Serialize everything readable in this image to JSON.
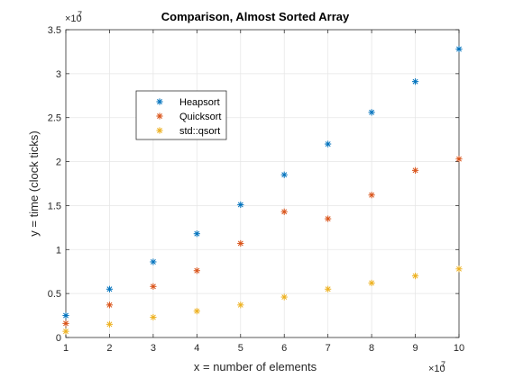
{
  "chart_data": {
    "type": "scatter",
    "title": "Comparison, Almost Sorted Array",
    "xlabel": "x = number of elements",
    "ylabel": "y = time (clock ticks)",
    "x_multiplier_label": "×10",
    "x_multiplier_exp": "7",
    "y_multiplier_label": "×10",
    "y_multiplier_exp": "7",
    "xlim": [
      1,
      10
    ],
    "ylim": [
      0,
      3.5
    ],
    "x_ticks": [
      "1",
      "2",
      "3",
      "4",
      "5",
      "6",
      "7",
      "8",
      "9",
      "10"
    ],
    "y_ticks": [
      "0",
      "0.5",
      "1",
      "1.5",
      "2",
      "2.5",
      "3",
      "3.5"
    ],
    "grid": true,
    "legend_position": "upper-left-inside",
    "marker": "asterisk",
    "x": [
      1,
      2,
      3,
      4,
      5,
      6,
      7,
      8,
      9,
      10
    ],
    "series": [
      {
        "name": "Heapsort",
        "color": "#0072BD",
        "values": [
          0.25,
          0.55,
          0.86,
          1.18,
          1.51,
          1.85,
          2.2,
          2.56,
          2.91,
          3.28
        ]
      },
      {
        "name": "Quicksort",
        "color": "#D95319",
        "values": [
          0.16,
          0.37,
          0.58,
          0.76,
          1.07,
          1.43,
          1.35,
          1.62,
          1.9,
          2.03
        ]
      },
      {
        "name": "std::qsort",
        "color": "#EDB120",
        "values": [
          0.07,
          0.15,
          0.23,
          0.3,
          0.37,
          0.46,
          0.55,
          0.62,
          0.7,
          0.78
        ]
      }
    ]
  }
}
